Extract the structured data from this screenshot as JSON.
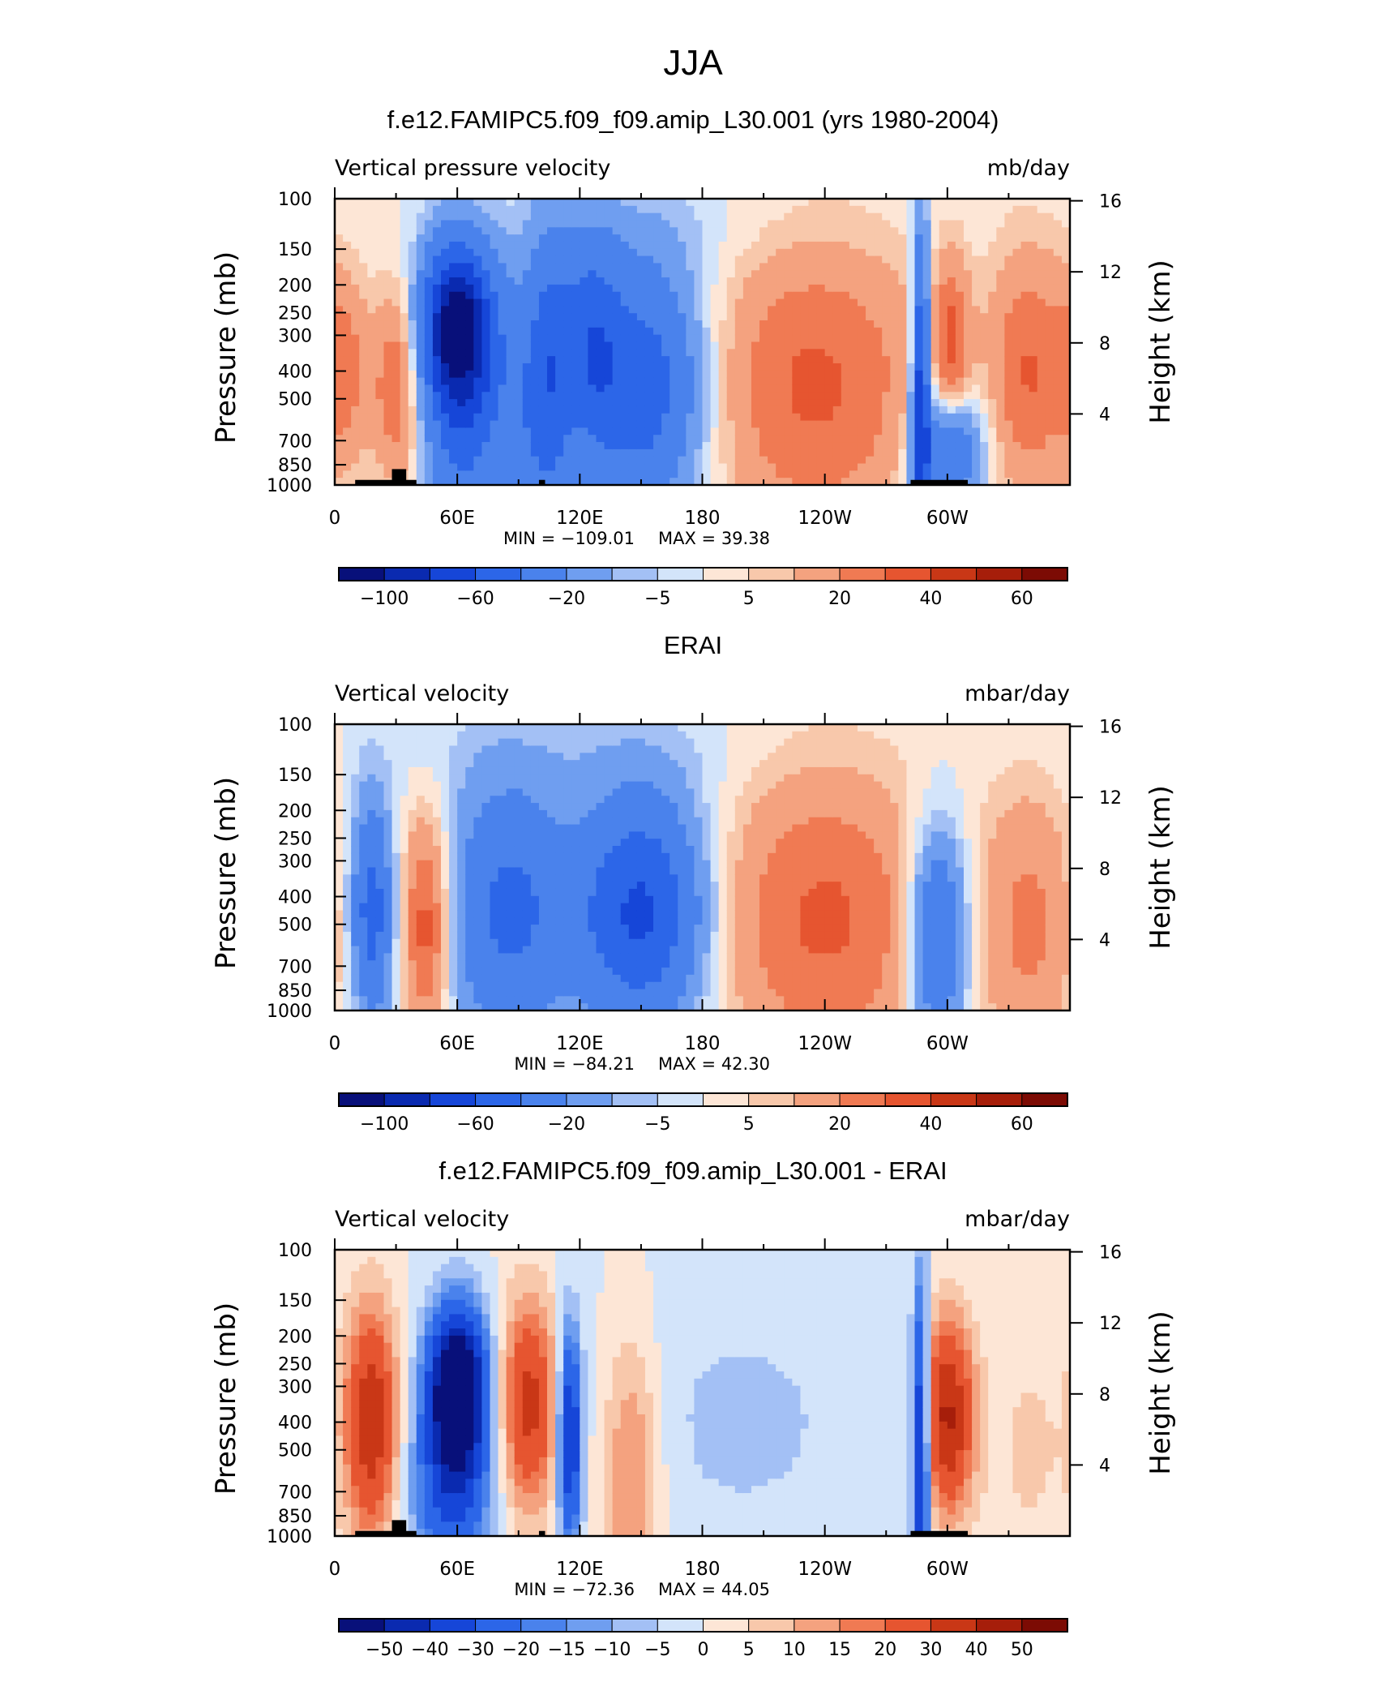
{
  "figure": {
    "title": "JJA"
  },
  "colors": {
    "neg": [
      "#08107a",
      "#0a2ab0",
      "#1646d8",
      "#2c66e8",
      "#4a82ec",
      "#6f9ef0",
      "#a3c0f5",
      "#d3e4fa"
    ],
    "pos": [
      "#fde6d6",
      "#f8c8ab",
      "#f4a27f",
      "#f07a53",
      "#e65530",
      "#c93716",
      "#a61e0a",
      "#7c0b04"
    ],
    "terrain": "#000000"
  },
  "chart_data": [
    {
      "type": "heatmap",
      "panel_title": "f.e12.FAMIPC5.f09_f09.amip_L30.001 (yrs 1980-2004)",
      "variable": "Vertical pressure velocity",
      "units": "mb/day",
      "x_ticks": [
        "0",
        "60E",
        "120E",
        "180",
        "120W",
        "60W"
      ],
      "x_tick_lons": [
        0,
        60,
        120,
        180,
        240,
        300
      ],
      "xlim": [
        0,
        360
      ],
      "y_ticks": [
        "100",
        "150",
        "200",
        "250",
        "300",
        "400",
        "500",
        "700",
        "850",
        "1000"
      ],
      "y_tick_values": [
        100,
        150,
        200,
        250,
        300,
        400,
        500,
        700,
        850,
        1000
      ],
      "ylim": [
        1000,
        100
      ],
      "y_log": true,
      "ylabel": "Pressure (mb)",
      "y2label": "Height (km)",
      "y2_ticks": [
        "4",
        "8",
        "12",
        "16"
      ],
      "y2_tick_values": [
        4,
        8,
        12,
        16
      ],
      "min_label": "MIN = −109.01",
      "max_label": "MAX =   39.38",
      "min": -109.01,
      "max": 39.38,
      "colorbar_labels": [
        "−100",
        "−60",
        "−20",
        "−5",
        "5",
        "20",
        "40",
        "60"
      ],
      "colorbar_label_edges": [
        1,
        3,
        5,
        7,
        9,
        11,
        13,
        15
      ],
      "levels": [
        -120,
        -100,
        -80,
        -60,
        -40,
        -20,
        -10,
        -5,
        0,
        5,
        10,
        20,
        30,
        40,
        50,
        60,
        70
      ],
      "blobs": [
        {
          "lon": 5,
          "p": 400,
          "wlon": 8,
          "wlp": 0.55,
          "amp": 22
        },
        {
          "lon": 30,
          "p": 450,
          "wlon": 8,
          "wlp": 0.55,
          "amp": 30
        },
        {
          "lon": 60,
          "p": 280,
          "wlon": 12,
          "wlp": 0.45,
          "amp": -100
        },
        {
          "lon": 62,
          "p": 600,
          "wlon": 12,
          "wlp": 0.8,
          "amp": -40
        },
        {
          "lon": 90,
          "p": 600,
          "wlon": 12,
          "wlp": 0.8,
          "amp": -25
        },
        {
          "lon": 105,
          "p": 400,
          "wlon": 8,
          "wlp": 0.8,
          "amp": -40
        },
        {
          "lon": 150,
          "p": 450,
          "wlon": 22,
          "wlp": 0.7,
          "amp": -55
        },
        {
          "lon": 125,
          "p": 300,
          "wlon": 10,
          "wlp": 0.6,
          "amp": -35
        },
        {
          "lon": 235,
          "p": 450,
          "wlon": 38,
          "wlp": 0.85,
          "amp": 32
        },
        {
          "lon": 287,
          "p": 500,
          "wlon": 3,
          "wlp": 0.9,
          "amp": -75
        },
        {
          "lon": 300,
          "p": 750,
          "wlon": 12,
          "wlp": 0.35,
          "amp": -45
        },
        {
          "lon": 302,
          "p": 330,
          "wlon": 6,
          "wlp": 0.5,
          "amp": 30
        },
        {
          "lon": 340,
          "p": 400,
          "wlon": 14,
          "wlp": 0.7,
          "amp": 30
        },
        {
          "lon": 180,
          "p": 130,
          "wlon": 60,
          "wlp": 0.3,
          "amp": -4
        }
      ],
      "terrain": [
        [
          10,
          40,
          960
        ],
        [
          28,
          35,
          880
        ],
        [
          100,
          103,
          960
        ],
        [
          282,
          310,
          960
        ]
      ]
    },
    {
      "type": "heatmap",
      "panel_title": "ERAI",
      "variable": "Vertical velocity",
      "units": "mbar/day",
      "x_ticks": [
        "0",
        "60E",
        "120E",
        "180",
        "120W",
        "60W"
      ],
      "x_tick_lons": [
        0,
        60,
        120,
        180,
        240,
        300
      ],
      "xlim": [
        0,
        360
      ],
      "y_ticks": [
        "100",
        "150",
        "200",
        "250",
        "300",
        "400",
        "500",
        "700",
        "850",
        "1000"
      ],
      "y_tick_values": [
        100,
        150,
        200,
        250,
        300,
        400,
        500,
        700,
        850,
        1000
      ],
      "ylim": [
        1000,
        100
      ],
      "y_log": true,
      "ylabel": "Pressure (mb)",
      "y2label": "Height (km)",
      "y2_ticks": [
        "4",
        "8",
        "12",
        "16"
      ],
      "y2_tick_values": [
        4,
        8,
        12,
        16
      ],
      "min_label": "MIN = −84.21",
      "max_label": "MAX =   42.30",
      "min": -84.21,
      "max": 42.3,
      "colorbar_labels": [
        "−100",
        "−60",
        "−20",
        "−5",
        "5",
        "20",
        "40",
        "60"
      ],
      "colorbar_label_edges": [
        1,
        3,
        5,
        7,
        9,
        11,
        13,
        15
      ],
      "levels": [
        -120,
        -100,
        -80,
        -60,
        -40,
        -20,
        -10,
        -5,
        0,
        5,
        10,
        20,
        30,
        40,
        50,
        60,
        70
      ],
      "blobs": [
        {
          "lon": 18,
          "p": 450,
          "wlon": 7,
          "wlp": 0.6,
          "amp": -50
        },
        {
          "lon": 45,
          "p": 500,
          "wlon": 8,
          "wlp": 0.6,
          "amp": 38
        },
        {
          "lon": 85,
          "p": 450,
          "wlon": 20,
          "wlp": 0.7,
          "amp": -45
        },
        {
          "lon": 150,
          "p": 450,
          "wlon": 22,
          "wlp": 0.65,
          "amp": -65
        },
        {
          "lon": 240,
          "p": 480,
          "wlon": 38,
          "wlp": 0.85,
          "amp": 32
        },
        {
          "lon": 295,
          "p": 550,
          "wlon": 10,
          "wlp": 0.6,
          "amp": -50
        },
        {
          "lon": 340,
          "p": 500,
          "wlon": 16,
          "wlp": 0.8,
          "amp": 22
        },
        {
          "lon": 120,
          "p": 130,
          "wlon": 80,
          "wlp": 0.3,
          "amp": -4
        }
      ],
      "terrain": []
    },
    {
      "type": "heatmap",
      "panel_title": "f.e12.FAMIPC5.f09_f09.amip_L30.001 - ERAI",
      "variable": "Vertical velocity",
      "units": "mbar/day",
      "x_ticks": [
        "0",
        "60E",
        "120E",
        "180",
        "120W",
        "60W"
      ],
      "x_tick_lons": [
        0,
        60,
        120,
        180,
        240,
        300
      ],
      "xlim": [
        0,
        360
      ],
      "y_ticks": [
        "100",
        "150",
        "200",
        "250",
        "300",
        "400",
        "500",
        "700",
        "850",
        "1000"
      ],
      "y_tick_values": [
        100,
        150,
        200,
        250,
        300,
        400,
        500,
        700,
        850,
        1000
      ],
      "ylim": [
        1000,
        100
      ],
      "y_log": true,
      "ylabel": "Pressure (mb)",
      "y2label": "Height (km)",
      "y2_ticks": [
        "4",
        "8",
        "12",
        "16"
      ],
      "y2_tick_values": [
        4,
        8,
        12,
        16
      ],
      "min_label": "MIN = −72.36",
      "max_label": "MAX =   44.05",
      "min": -72.36,
      "max": 44.05,
      "colorbar_labels": [
        "−50",
        "−40",
        "−30",
        "−20",
        "−15",
        "−10",
        "−5",
        "0",
        "5",
        "10",
        "15",
        "20",
        "30",
        "40",
        "50"
      ],
      "colorbar_label_edges": [
        1,
        2,
        3,
        4,
        5,
        6,
        7,
        8,
        9,
        10,
        11,
        12,
        13,
        14,
        15
      ],
      "levels": [
        -60,
        -50,
        -40,
        -30,
        -20,
        -15,
        -10,
        -5,
        0,
        5,
        10,
        15,
        20,
        30,
        40,
        50,
        60
      ],
      "blobs": [
        {
          "lon": 18,
          "p": 400,
          "wlon": 9,
          "wlp": 0.65,
          "amp": 38
        },
        {
          "lon": 60,
          "p": 300,
          "wlon": 10,
          "wlp": 0.45,
          "amp": -70
        },
        {
          "lon": 57,
          "p": 700,
          "wlon": 14,
          "wlp": 0.55,
          "amp": -30
        },
        {
          "lon": 95,
          "p": 350,
          "wlon": 10,
          "wlp": 0.6,
          "amp": 34
        },
        {
          "lon": 115,
          "p": 450,
          "wlon": 4,
          "wlp": 0.6,
          "amp": -45
        },
        {
          "lon": 145,
          "p": 600,
          "wlon": 10,
          "wlp": 0.8,
          "amp": 18
        },
        {
          "lon": 200,
          "p": 400,
          "wlon": 50,
          "wlp": 0.9,
          "amp": -6
        },
        {
          "lon": 287,
          "p": 500,
          "wlon": 3,
          "wlp": 0.9,
          "amp": -50
        },
        {
          "lon": 300,
          "p": 380,
          "wlon": 9,
          "wlp": 0.55,
          "amp": 42
        },
        {
          "lon": 340,
          "p": 500,
          "wlon": 16,
          "wlp": 0.8,
          "amp": 6
        }
      ],
      "terrain": [
        [
          10,
          40,
          960
        ],
        [
          28,
          35,
          880
        ],
        [
          100,
          103,
          960
        ],
        [
          282,
          310,
          960
        ]
      ]
    }
  ]
}
